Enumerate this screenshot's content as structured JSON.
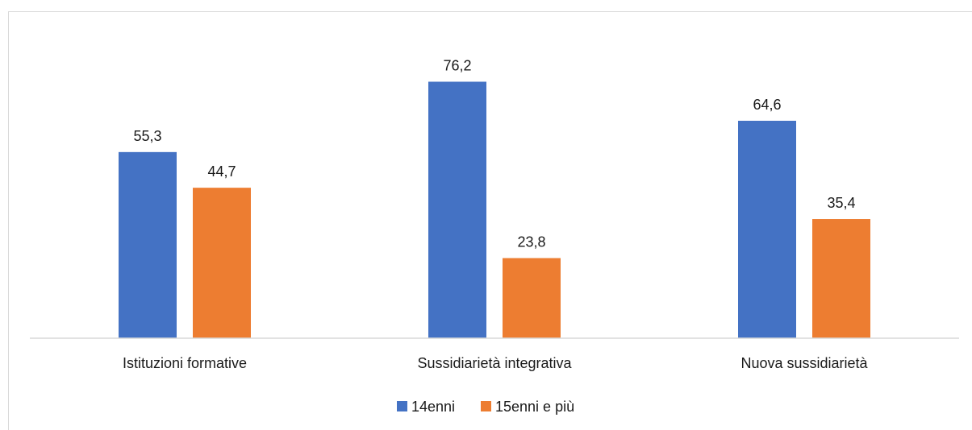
{
  "chart_data": {
    "type": "bar",
    "categories": [
      "Istituzioni formative",
      "Sussidiarietà integrativa",
      "Nuova sussidiarietà"
    ],
    "series": [
      {
        "name": "14enni",
        "values": [
          55.3,
          76.2,
          64.6
        ],
        "color": "#4472C4"
      },
      {
        "name": "15enni e più",
        "values": [
          44.7,
          23.8,
          35.4
        ],
        "color": "#ED7D31"
      }
    ],
    "data_labels": [
      [
        "55,3",
        "76,2",
        "64,6"
      ],
      [
        "44,7",
        "23,8",
        "35,4"
      ]
    ],
    "ylim": [
      0,
      100
    ],
    "grid": false,
    "legend": "bottom",
    "axis_color": "#d9d9d9"
  }
}
